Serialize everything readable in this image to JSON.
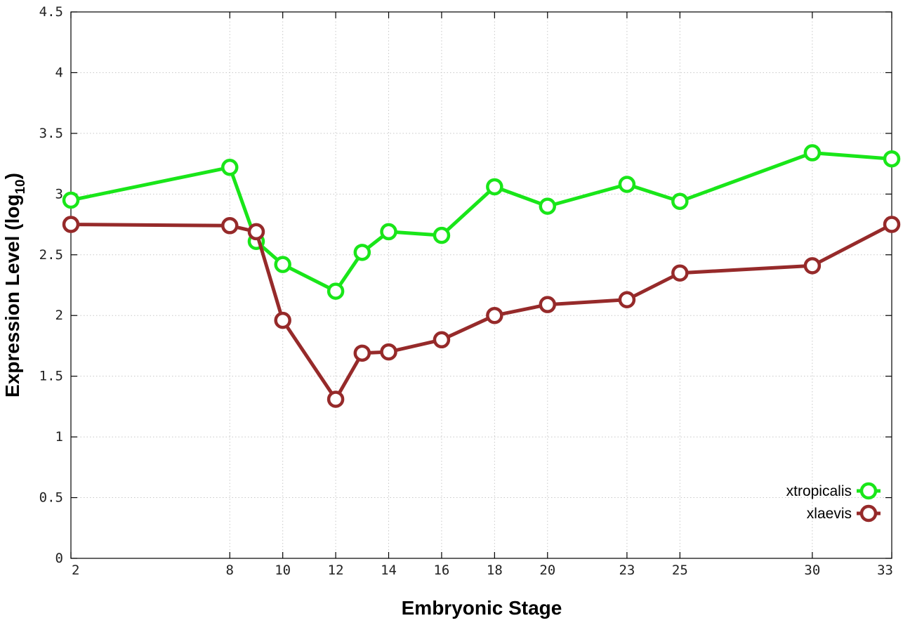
{
  "chart_data": {
    "type": "line",
    "xlabel": "Embryonic Stage",
    "ylabel": {
      "main": "Expression Level (log",
      "sub": "10",
      "close": ")"
    },
    "ylim": [
      0,
      4.5
    ],
    "xlim": [
      2,
      33
    ],
    "x_ticks": [
      "2",
      "8",
      "10",
      "12",
      "14",
      "16",
      "18",
      "20",
      "23",
      "25",
      "30",
      "33"
    ],
    "x_tick_values": [
      2,
      8,
      10,
      12,
      14,
      16,
      18,
      20,
      23,
      25,
      30,
      33
    ],
    "y_ticks": [
      "0",
      "0.5",
      "1",
      "1.5",
      "2",
      "2.5",
      "3",
      "3.5",
      "4",
      "4.5"
    ],
    "y_tick_values": [
      0,
      0.5,
      1,
      1.5,
      2,
      2.5,
      3,
      3.5,
      4,
      4.5
    ],
    "x": [
      2,
      8,
      9,
      10,
      12,
      13,
      14,
      16,
      18,
      20,
      23,
      25,
      30,
      33
    ],
    "grid": true,
    "legend_position": "bottom-right",
    "series": [
      {
        "name": "xtropicalis",
        "color": "#19e619",
        "values": [
          2.95,
          3.22,
          2.61,
          2.42,
          2.2,
          2.52,
          2.69,
          2.66,
          3.06,
          2.9,
          3.08,
          2.94,
          3.34,
          3.29
        ]
      },
      {
        "name": "xlaevis",
        "color": "#962a2a",
        "values": [
          2.75,
          2.74,
          2.69,
          1.96,
          1.31,
          1.69,
          1.7,
          1.8,
          2.0,
          2.09,
          2.13,
          2.35,
          2.41,
          2.75
        ]
      }
    ]
  }
}
